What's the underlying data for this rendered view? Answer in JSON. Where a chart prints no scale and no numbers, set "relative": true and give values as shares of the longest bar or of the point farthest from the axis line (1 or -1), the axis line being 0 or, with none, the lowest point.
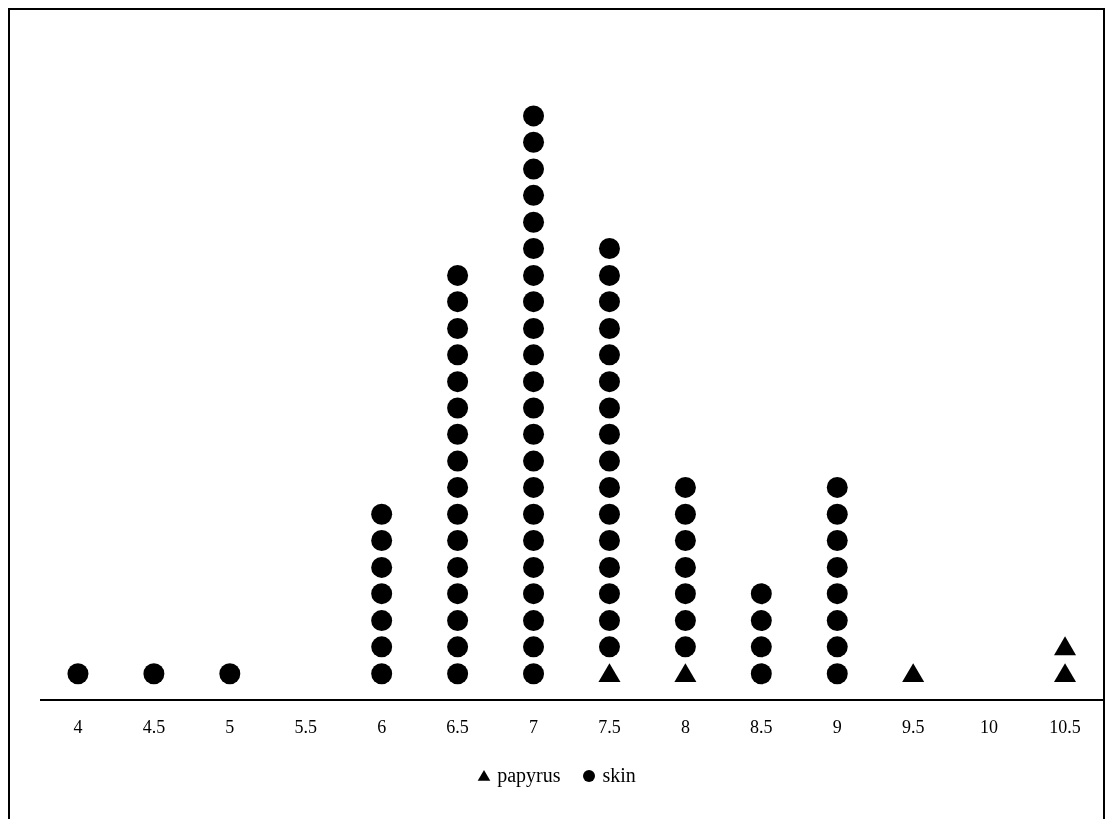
{
  "chart_data": {
    "type": "scatter",
    "xlim": [
      3.75,
      10.75
    ],
    "relative": true,
    "tick_labels": "x",
    "legend": "bottom",
    "xticks": [
      4,
      4.5,
      5,
      5.5,
      6,
      6.5,
      7,
      7.5,
      8,
      8.5,
      9,
      9.5,
      10,
      10.5
    ],
    "series": [
      {
        "name": "papyrus",
        "color": "#000000",
        "marker": "triangle",
        "x": [
          7.5,
          8,
          9.5,
          10.5,
          10.5
        ],
        "values": [
          0.045,
          0.045,
          0.045,
          0.045,
          0.091
        ]
      },
      {
        "name": "skin",
        "color": "#000000",
        "marker": "circle",
        "x": [
          4,
          4.5,
          5,
          6,
          6,
          6,
          6,
          6,
          6,
          6,
          6.5,
          6.5,
          6.5,
          6.5,
          6.5,
          6.5,
          6.5,
          6.5,
          6.5,
          6.5,
          6.5,
          6.5,
          6.5,
          6.5,
          6.5,
          6.5,
          7,
          7,
          7,
          7,
          7,
          7,
          7,
          7,
          7,
          7,
          7,
          7,
          7,
          7,
          7,
          7,
          7,
          7,
          7,
          7,
          7,
          7,
          7.5,
          7.5,
          7.5,
          7.5,
          7.5,
          7.5,
          7.5,
          7.5,
          7.5,
          7.5,
          7.5,
          7.5,
          7.5,
          7.5,
          7.5,
          7.5,
          8,
          8,
          8,
          8,
          8,
          8,
          8,
          8.5,
          8.5,
          8.5,
          8.5,
          9,
          9,
          9,
          9,
          9,
          9,
          9,
          9
        ],
        "values": [
          0.045,
          0.045,
          0.045,
          0.045,
          0.091,
          0.136,
          0.182,
          0.227,
          0.273,
          0.318,
          0.045,
          0.091,
          0.136,
          0.182,
          0.227,
          0.273,
          0.318,
          0.364,
          0.409,
          0.455,
          0.5,
          0.545,
          0.591,
          0.636,
          0.682,
          0.727,
          0.045,
          0.091,
          0.136,
          0.182,
          0.227,
          0.273,
          0.318,
          0.364,
          0.409,
          0.455,
          0.5,
          0.545,
          0.591,
          0.636,
          0.682,
          0.727,
          0.773,
          0.818,
          0.864,
          0.909,
          0.955,
          1,
          0.091,
          0.136,
          0.182,
          0.227,
          0.273,
          0.318,
          0.364,
          0.409,
          0.455,
          0.5,
          0.545,
          0.591,
          0.636,
          0.682,
          0.727,
          0.773,
          0.091,
          0.136,
          0.182,
          0.227,
          0.273,
          0.318,
          0.364,
          0.045,
          0.091,
          0.136,
          0.182,
          0.045,
          0.091,
          0.136,
          0.182,
          0.227,
          0.273,
          0.318,
          0.364
        ]
      }
    ]
  }
}
